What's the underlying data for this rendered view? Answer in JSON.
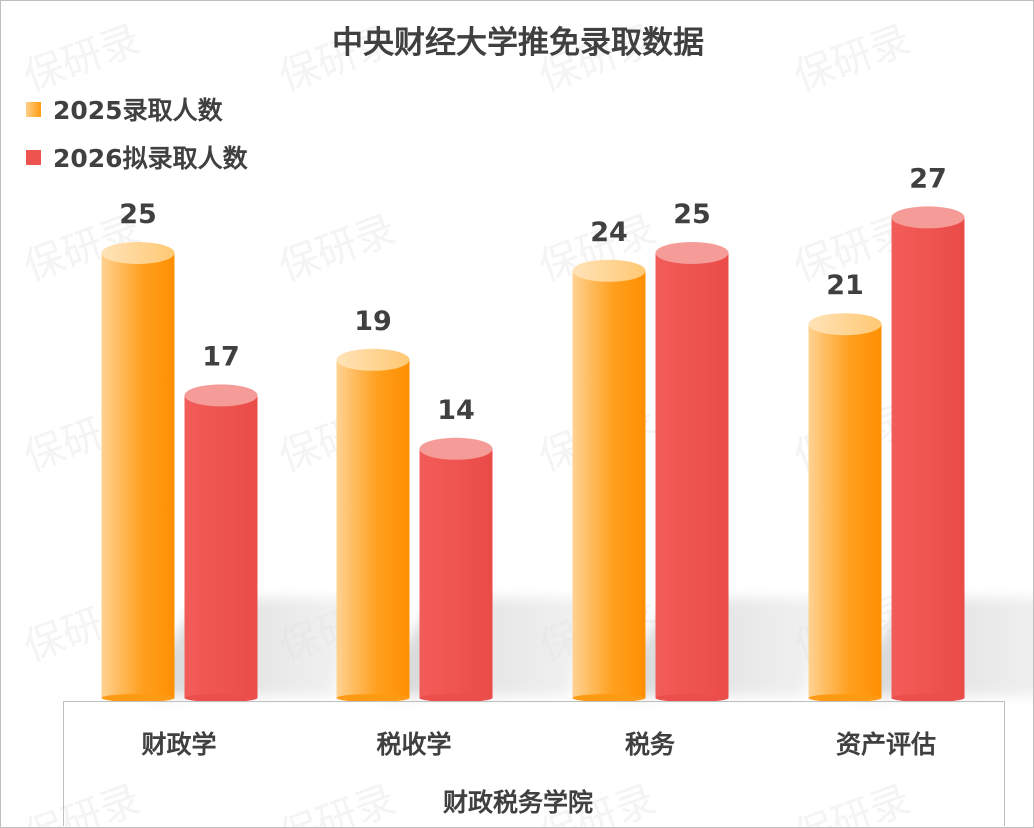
{
  "chart_data": {
    "type": "bar",
    "title": "中央财经大学推免录取数据",
    "xlabel": "财政税务学院",
    "categories": [
      "财政学",
      "税收学",
      "税务",
      "资产评估"
    ],
    "series": [
      {
        "name": "2025录取人数",
        "values": [
          25,
          19,
          24,
          21
        ],
        "color": "#ff9b0f"
      },
      {
        "name": "2026拟录取人数",
        "values": [
          17,
          14,
          25,
          27
        ],
        "color": "#ef5350"
      }
    ],
    "data_labels": true,
    "style": "3d-cylinder",
    "legend_position": "top-left",
    "grid": false
  },
  "watermark": "保研录"
}
